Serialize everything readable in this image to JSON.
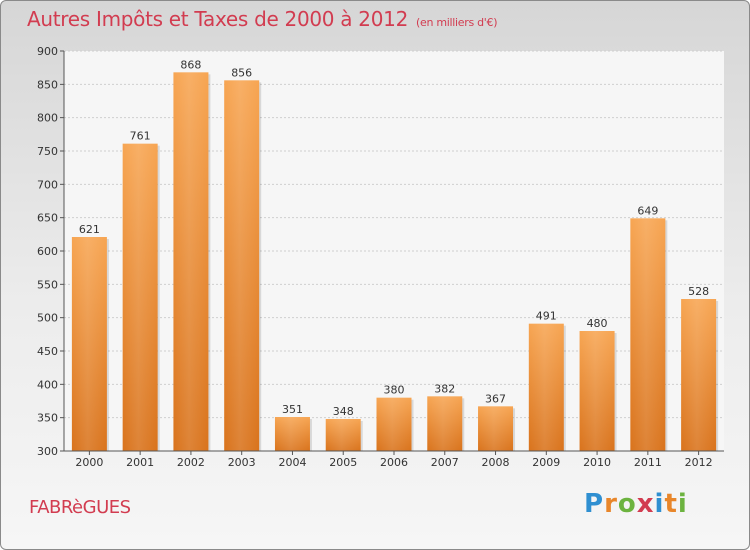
{
  "chart_data": {
    "type": "bar",
    "title": "Autres Impôts et Taxes de 2000 à 2012",
    "subtitle": "(en milliers d'€)",
    "categories": [
      "2000",
      "2001",
      "2002",
      "2003",
      "2004",
      "2005",
      "2006",
      "2007",
      "2008",
      "2009",
      "2010",
      "2011",
      "2012"
    ],
    "values": [
      621,
      761,
      868,
      856,
      351,
      348,
      380,
      382,
      367,
      491,
      480,
      649,
      528
    ],
    "ylim": [
      300,
      900
    ],
    "yticks": [
      300,
      350,
      400,
      450,
      500,
      550,
      600,
      650,
      700,
      750,
      800,
      850,
      900
    ],
    "grid": true,
    "colors": {
      "bar_top": "#f7a552",
      "bar_bottom": "#d9731c",
      "title": "#d23c50"
    }
  },
  "footer": {
    "city": "FABRèGUES",
    "logo": {
      "letters": [
        "P",
        "r",
        "o",
        "x",
        "i",
        "t",
        "i"
      ],
      "colors": [
        "#2f8fd1",
        "#e8862a",
        "#6cb33f",
        "#d23c50",
        "#2f8fd1",
        "#e8862a",
        "#6cb33f"
      ]
    }
  }
}
